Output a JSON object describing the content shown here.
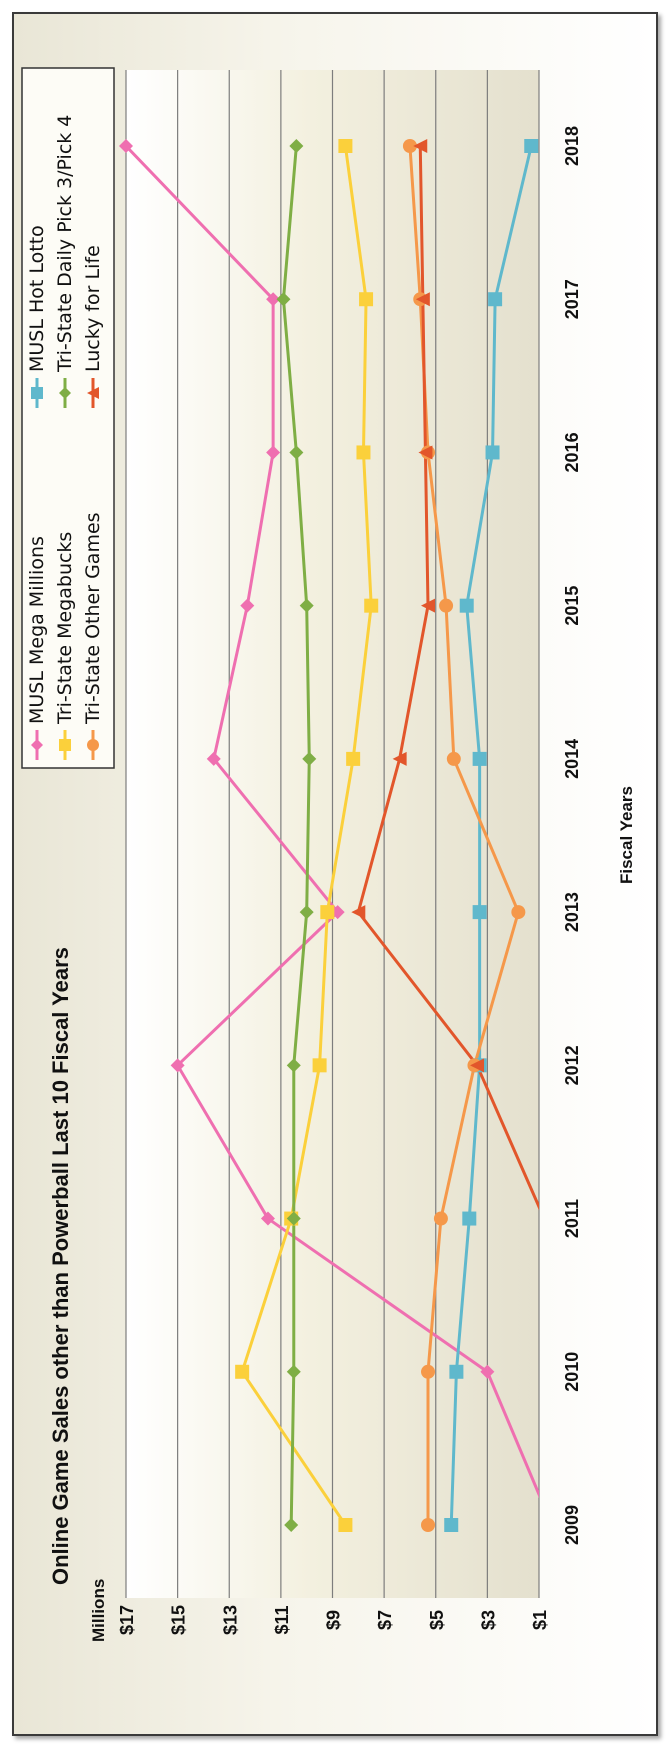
{
  "chart_data": {
    "type": "line",
    "title": "Online Game Sales other than Powerball Last 10 Fiscal Years",
    "xlabel": "Fiscal Years",
    "ylabel": "Millions",
    "ylim": [
      1,
      17
    ],
    "yticks": [
      "$17",
      "$15",
      "$13",
      "$11",
      "$9",
      "$7",
      "$5",
      "$3",
      "$1"
    ],
    "categories": [
      "2009",
      "2010",
      "2011",
      "2012",
      "2013",
      "2014",
      "2015",
      "2016",
      "2017",
      "2018"
    ],
    "grid": true,
    "legend_position": "top",
    "series": [
      {
        "name": "MUSL Mega Millions",
        "color": "#ef6fb0",
        "marker": "diamond",
        "values": [
          0.5,
          3.0,
          11.5,
          15.0,
          8.8,
          13.6,
          12.3,
          11.3,
          11.3,
          17.0
        ]
      },
      {
        "name": "MUSL Hot Lotto",
        "color": "#5fb8cc",
        "marker": "square",
        "values": [
          4.4,
          4.2,
          3.7,
          3.3,
          3.3,
          3.3,
          3.8,
          2.8,
          2.7,
          1.3
        ]
      },
      {
        "name": "Tri-State Megabucks",
        "color": "#fbd03b",
        "marker": "square",
        "values": [
          8.5,
          12.5,
          10.6,
          9.5,
          9.2,
          8.2,
          7.5,
          7.8,
          7.7,
          8.5
        ]
      },
      {
        "name": "Tri-State Daily Pick 3/Pick 4",
        "color": "#7fae45",
        "marker": "diamond",
        "values": [
          10.6,
          10.5,
          10.5,
          10.5,
          10.0,
          9.9,
          10.0,
          10.4,
          10.9,
          10.4
        ]
      },
      {
        "name": "Tri-State Other Games",
        "color": "#f5984a",
        "marker": "circle",
        "values": [
          5.3,
          5.3,
          4.8,
          3.5,
          1.8,
          4.3,
          4.6,
          5.3,
          5.6,
          6.0
        ]
      },
      {
        "name": "Lucky for Life",
        "color": "#e2562b",
        "marker": "triangle",
        "values": [
          null,
          null,
          0.8,
          3.4,
          8.0,
          6.4,
          5.3,
          5.4,
          5.5,
          5.6
        ]
      }
    ]
  }
}
